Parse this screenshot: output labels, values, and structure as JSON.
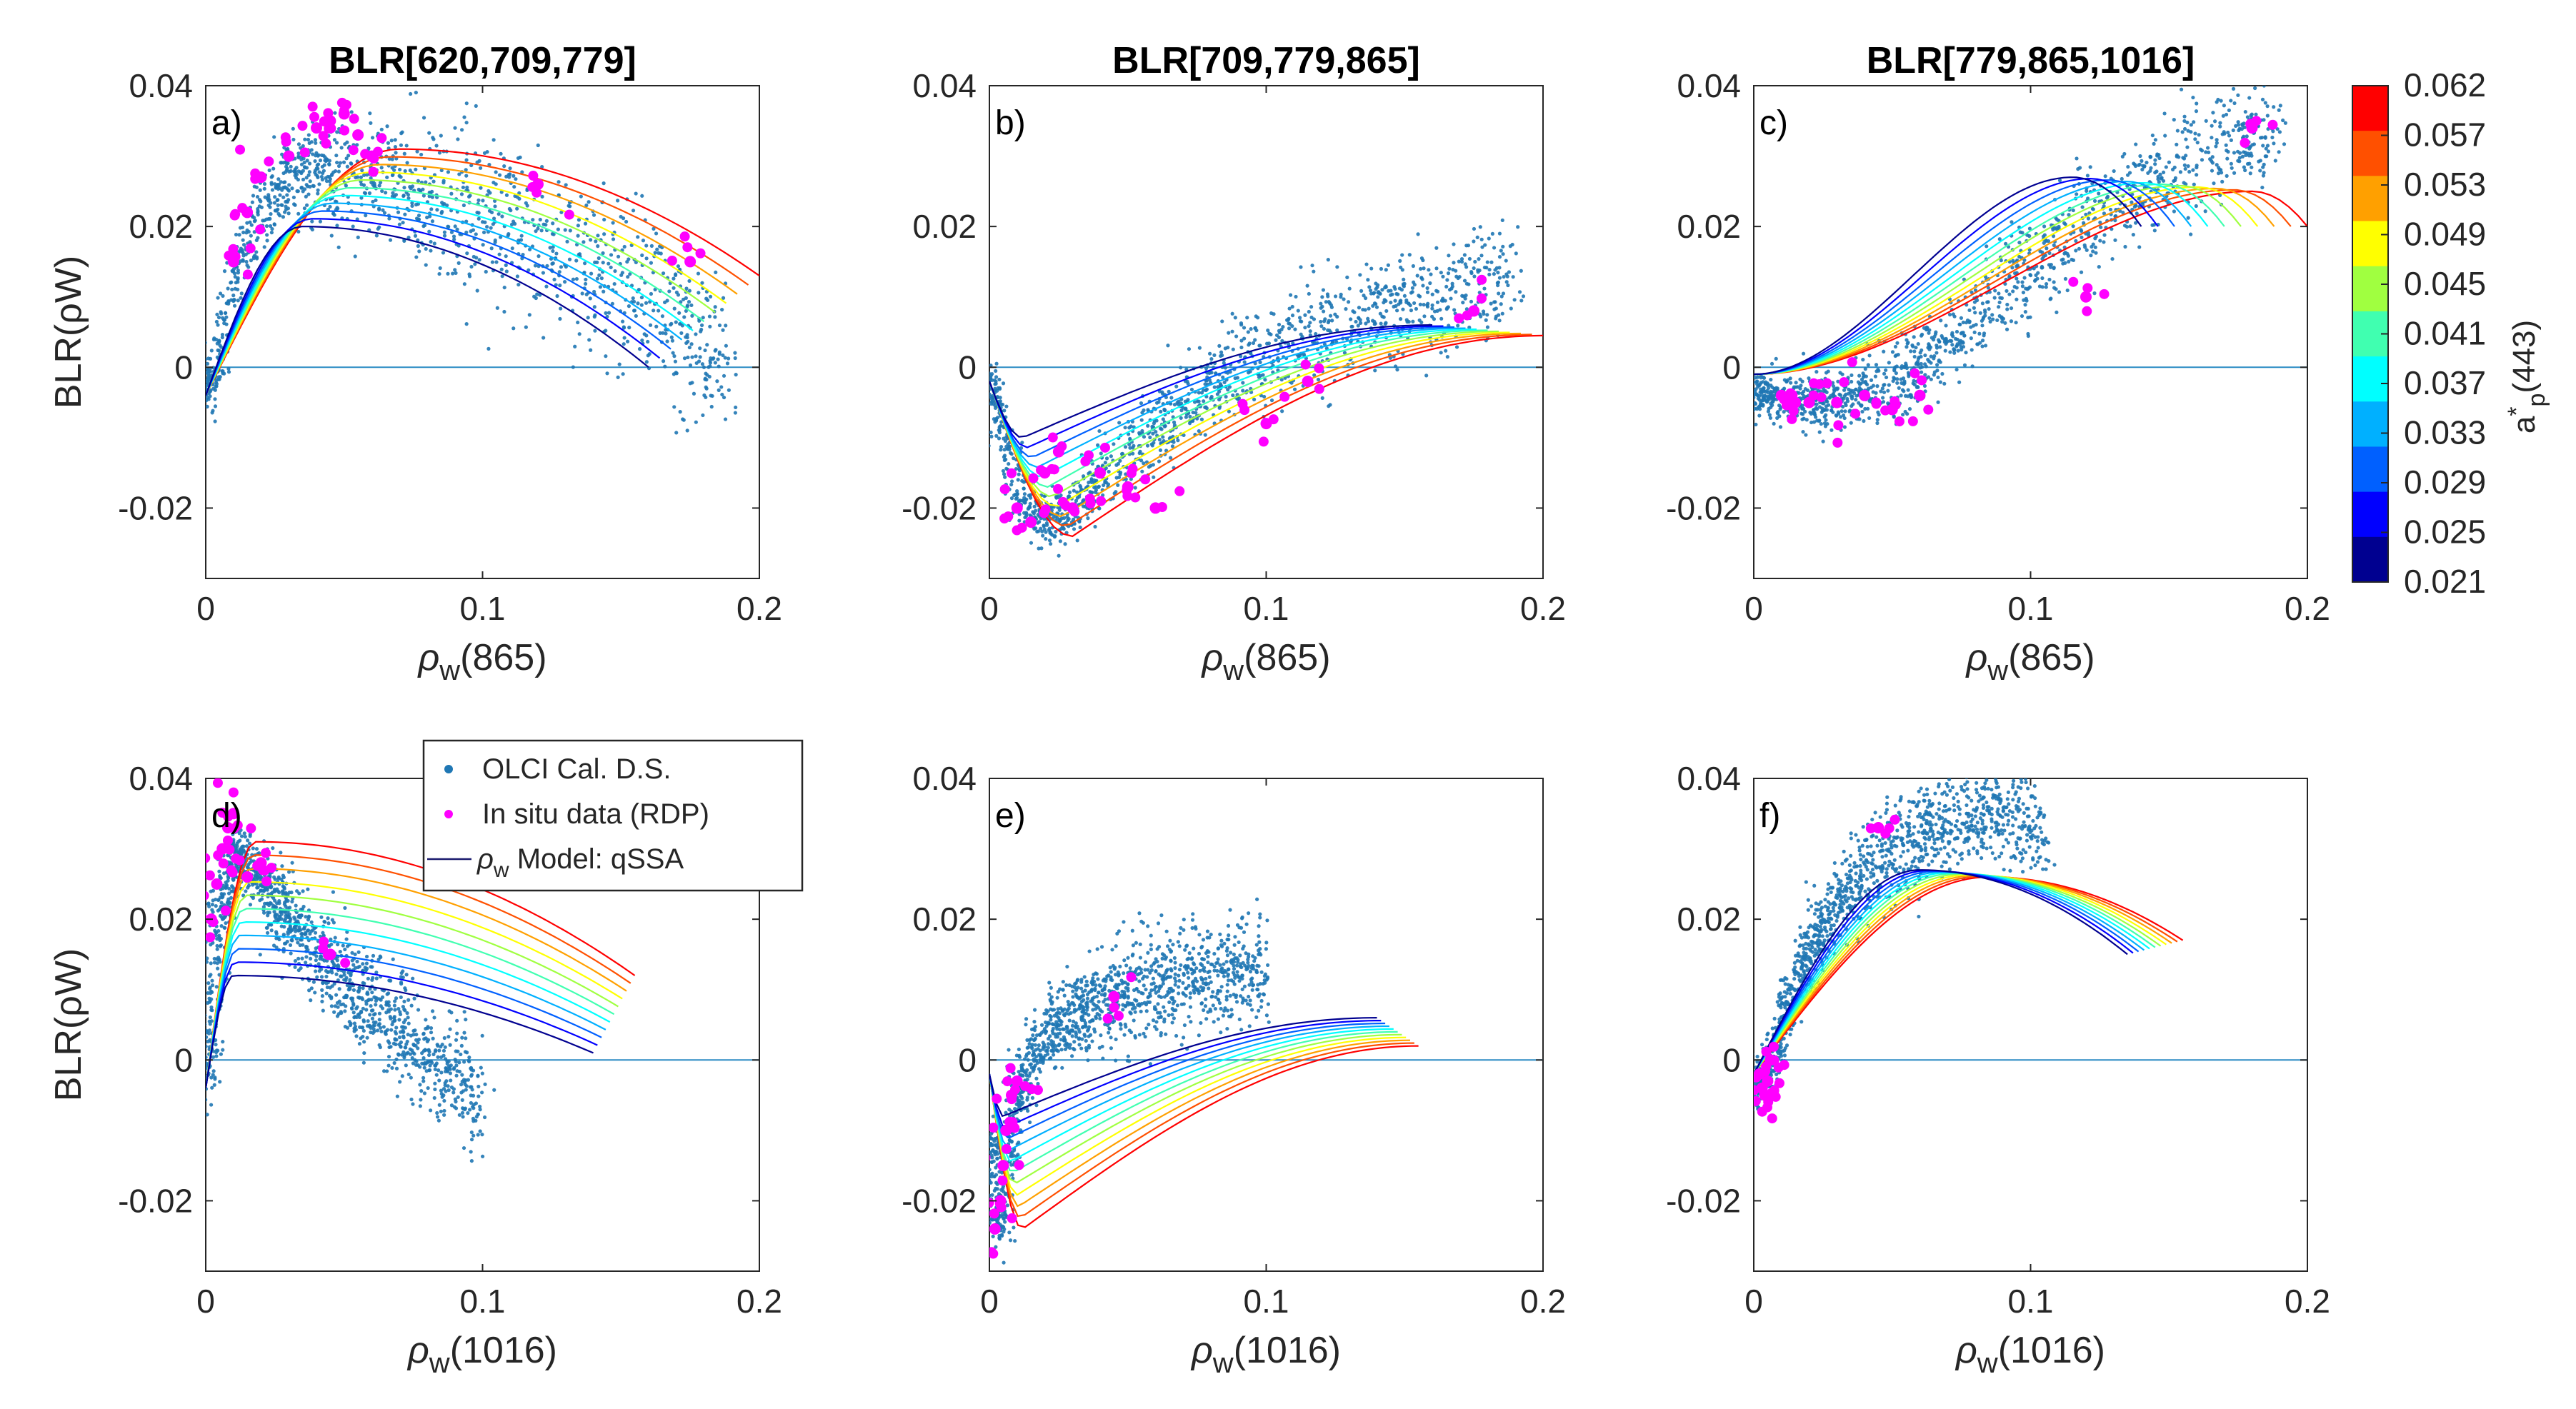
{
  "figure": {
    "legend": {
      "items": [
        {
          "label": "OLCI Cal. D.S.",
          "color": "#1f77b4",
          "kind": "dot"
        },
        {
          "label": "In situ data (RDP)",
          "color": "#ff00ff",
          "kind": "dot"
        },
        {
          "label_sym": "ρ",
          "label_sub": "w",
          "label_rest": " Model: qSSA",
          "color": "#1a1a6e",
          "kind": "line"
        }
      ]
    },
    "colorbar": {
      "label_main": "a",
      "label_sup": "*",
      "label_sub": "p",
      "label_rest": "(443)",
      "ticks": [
        "0.062",
        "0.057",
        "0.053",
        "0.049",
        "0.045",
        "0.041",
        "0.037",
        "0.033",
        "0.029",
        "0.025",
        "0.021"
      ],
      "colors": [
        "#ff0000",
        "#ff5000",
        "#ffa000",
        "#ffff00",
        "#a0ff40",
        "#40ffb0",
        "#00ffff",
        "#00b0ff",
        "#0060ff",
        "#0000ff",
        "#000090"
      ]
    },
    "colors": {
      "olci": "#1f77b4",
      "insitu": "#ff00ff",
      "zero_line": "#2b8cc4"
    }
  },
  "chart_data": [
    {
      "type": "scatter",
      "panel": "a)",
      "title": "BLR[620,709,779]",
      "ylabel": "BLR(ρW)",
      "xlabel_sym": "ρ",
      "xlabel_sub": "w",
      "xlabel_rest": "(865)",
      "xlim": [
        0,
        0.2
      ],
      "ylim": [
        -0.03,
        0.04
      ],
      "xticks": [
        "0",
        "0.1",
        "0.2"
      ],
      "yticks": [
        "0.04",
        "0.02",
        "0",
        "-0.02"
      ],
      "series": [
        {
          "name": "OLCI Cal. D.S.",
          "shape": "hump",
          "x": [
            0.0,
            0.005,
            0.01,
            0.02,
            0.03,
            0.05,
            0.07,
            0.1,
            0.13,
            0.16,
            0.19
          ],
          "y": [
            -0.004,
            0.002,
            0.012,
            0.022,
            0.027,
            0.028,
            0.026,
            0.022,
            0.016,
            0.009,
            0.0
          ]
        },
        {
          "name": "In situ data (RDP)",
          "x": [
            0.01,
            0.015,
            0.02,
            0.03,
            0.04,
            0.045,
            0.05,
            0.055,
            0.06,
            0.12,
            0.175
          ],
          "y": [
            0.015,
            0.022,
            0.027,
            0.03,
            0.034,
            0.035,
            0.036,
            0.033,
            0.03,
            0.026,
            0.015
          ]
        }
      ],
      "model": {
        "kind": "hump",
        "x0": 0.0,
        "y0": -0.004,
        "peak_x": [
          0.035,
          0.07
        ],
        "peak_y": [
          0.02,
          0.031
        ],
        "end_x": [
          0.16,
          0.2
        ],
        "end_y": [
          0.0,
          0.013
        ]
      }
    },
    {
      "type": "scatter",
      "panel": "b)",
      "title": "BLR[709,779,865]",
      "ylabel": "",
      "xlabel_sym": "ρ",
      "xlabel_sub": "w",
      "xlabel_rest": "(865)",
      "xlim": [
        0,
        0.2
      ],
      "ylim": [
        -0.03,
        0.04
      ],
      "xticks": [
        "0",
        "0.1",
        "0.2"
      ],
      "yticks": [
        "0.04",
        "0.02",
        "0",
        "-0.02"
      ],
      "series": [
        {
          "name": "OLCI Cal. D.S.",
          "shape": "dip",
          "x": [
            0.0,
            0.01,
            0.02,
            0.03,
            0.05,
            0.08,
            0.11,
            0.14,
            0.17,
            0.19
          ],
          "y": [
            -0.002,
            -0.018,
            -0.022,
            -0.02,
            -0.012,
            -0.003,
            0.004,
            0.008,
            0.011,
            0.013
          ]
        },
        {
          "name": "In situ data (RDP)",
          "x": [
            0.01,
            0.015,
            0.02,
            0.025,
            0.03,
            0.04,
            0.05,
            0.06,
            0.1,
            0.115,
            0.175
          ],
          "y": [
            -0.02,
            -0.022,
            -0.015,
            -0.012,
            -0.02,
            -0.015,
            -0.017,
            -0.02,
            -0.008,
            -0.002,
            0.008
          ]
        }
      ],
      "model": {
        "kind": "dip",
        "x0": 0.0,
        "y0": -0.002,
        "min_x": [
          0.012,
          0.03
        ],
        "min_y": [
          -0.01,
          -0.024
        ],
        "end_x": [
          0.16,
          0.2
        ],
        "end_y": [
          0.006,
          0.0045
        ]
      }
    },
    {
      "type": "scatter",
      "panel": "c)",
      "title": "BLR[779,865,1016]",
      "ylabel": "",
      "xlabel_sym": "ρ",
      "xlabel_sub": "w",
      "xlabel_rest": "(865)",
      "xlim": [
        0,
        0.2
      ],
      "ylim": [
        -0.03,
        0.04
      ],
      "xticks": [
        "0",
        "0.1",
        "0.2"
      ],
      "yticks": [
        "0.04",
        "0.02",
        "0",
        "-0.02"
      ],
      "series": [
        {
          "name": "OLCI Cal. D.S.",
          "shape": "rise",
          "x": [
            0.0,
            0.02,
            0.04,
            0.06,
            0.08,
            0.1,
            0.12,
            0.14,
            0.16,
            0.18,
            0.19
          ],
          "y": [
            -0.004,
            -0.005,
            -0.004,
            0.0,
            0.007,
            0.014,
            0.021,
            0.026,
            0.03,
            0.033,
            0.034
          ]
        },
        {
          "name": "In situ data (RDP)",
          "x": [
            0.01,
            0.015,
            0.02,
            0.03,
            0.04,
            0.05,
            0.06,
            0.12,
            0.18
          ],
          "y": [
            -0.004,
            -0.005,
            -0.005,
            -0.005,
            -0.004,
            -0.006,
            -0.004,
            0.01,
            0.034
          ]
        }
      ],
      "model": {
        "kind": "rise",
        "x0": 0.0,
        "y0": -0.001,
        "peak_x": [
          0.115,
          0.18
        ],
        "peak_y": [
          0.027,
          0.025
        ],
        "end_x": [
          0.14,
          0.2
        ],
        "end_y": [
          0.02,
          0.02
        ]
      }
    },
    {
      "type": "scatter",
      "panel": "d)",
      "title": "",
      "ylabel": "BLR(ρW)",
      "xlabel_sym": "ρ",
      "xlabel_sub": "w",
      "xlabel_rest": "(1016)",
      "xlim": [
        0,
        0.2
      ],
      "ylim": [
        -0.03,
        0.04
      ],
      "xticks": [
        "0",
        "0.1",
        "0.2"
      ],
      "yticks": [
        "0.04",
        "0.02",
        "0",
        "-0.02"
      ],
      "series": [
        {
          "name": "OLCI Cal. D.S.",
          "shape": "spike",
          "x": [
            0.0,
            0.005,
            0.01,
            0.02,
            0.04,
            0.06,
            0.08,
            0.1
          ],
          "y": [
            -0.004,
            0.02,
            0.03,
            0.025,
            0.015,
            0.008,
            0.0,
            -0.005
          ]
        },
        {
          "name": "In situ data (RDP)",
          "x": [
            0.002,
            0.004,
            0.006,
            0.008,
            0.01,
            0.015,
            0.02,
            0.045
          ],
          "y": [
            0.02,
            0.025,
            0.03,
            0.033,
            0.035,
            0.026,
            0.028,
            0.015
          ]
        }
      ],
      "model": {
        "kind": "spike",
        "x0": 0.0,
        "y0": -0.004,
        "peak_x": [
          0.01,
          0.018
        ],
        "peak_y": [
          0.012,
          0.031
        ],
        "end_x": [
          0.14,
          0.155
        ],
        "end_y": [
          0.001,
          0.012
        ]
      }
    },
    {
      "type": "scatter",
      "panel": "e)",
      "title": "",
      "ylabel": "",
      "xlabel_sym": "ρ",
      "xlabel_sub": "w",
      "xlabel_rest": "(1016)",
      "xlim": [
        0,
        0.2
      ],
      "ylim": [
        -0.03,
        0.04
      ],
      "xticks": [
        "0",
        "0.1",
        "0.2"
      ],
      "yticks": [
        "0.04",
        "0.02",
        "0",
        "-0.02"
      ],
      "series": [
        {
          "name": "OLCI Cal. D.S.",
          "shape": "sharpdip",
          "x": [
            0.0,
            0.003,
            0.006,
            0.01,
            0.02,
            0.04,
            0.06,
            0.08,
            0.1
          ],
          "y": [
            -0.01,
            -0.025,
            -0.015,
            -0.005,
            0.004,
            0.008,
            0.011,
            0.012,
            0.013
          ]
        },
        {
          "name": "In situ data (RDP)",
          "x": [
            0.002,
            0.004,
            0.005,
            0.006,
            0.008,
            0.01,
            0.045
          ],
          "y": [
            -0.024,
            -0.02,
            -0.015,
            -0.01,
            -0.005,
            -0.003,
            0.009
          ]
        }
      ],
      "model": {
        "kind": "dip",
        "x0": 0.0,
        "y0": -0.002,
        "min_x": [
          0.005,
          0.012
        ],
        "min_y": [
          -0.008,
          -0.024
        ],
        "end_x": [
          0.14,
          0.155
        ],
        "end_y": [
          0.006,
          0.002
        ]
      }
    },
    {
      "type": "scatter",
      "panel": "f)",
      "title": "",
      "ylabel": "",
      "xlabel_sym": "ρ",
      "xlabel_sub": "w",
      "xlabel_rest": "(1016)",
      "xlim": [
        0,
        0.2
      ],
      "ylim": [
        -0.03,
        0.04
      ],
      "xticks": [
        "0",
        "0.1",
        "0.2"
      ],
      "yticks": [
        "0.04",
        "0.02",
        "0",
        "-0.02"
      ],
      "series": [
        {
          "name": "OLCI Cal. D.S.",
          "shape": "hump2",
          "x": [
            0.0,
            0.005,
            0.01,
            0.02,
            0.03,
            0.05,
            0.07,
            0.09,
            0.105
          ],
          "y": [
            -0.004,
            -0.002,
            0.005,
            0.015,
            0.022,
            0.03,
            0.034,
            0.035,
            0.033
          ]
        },
        {
          "name": "In situ data (RDP)",
          "x": [
            0.002,
            0.003,
            0.004,
            0.005,
            0.006,
            0.045
          ],
          "y": [
            -0.002,
            -0.004,
            -0.005,
            -0.003,
            0.0,
            0.033
          ]
        }
      ],
      "model": {
        "kind": "hump",
        "x0": 0.0,
        "y0": -0.002,
        "peak_x": [
          0.06,
          0.085
        ],
        "peak_y": [
          0.027,
          0.026
        ],
        "end_x": [
          0.135,
          0.155
        ],
        "end_y": [
          0.015,
          0.017
        ]
      }
    }
  ]
}
